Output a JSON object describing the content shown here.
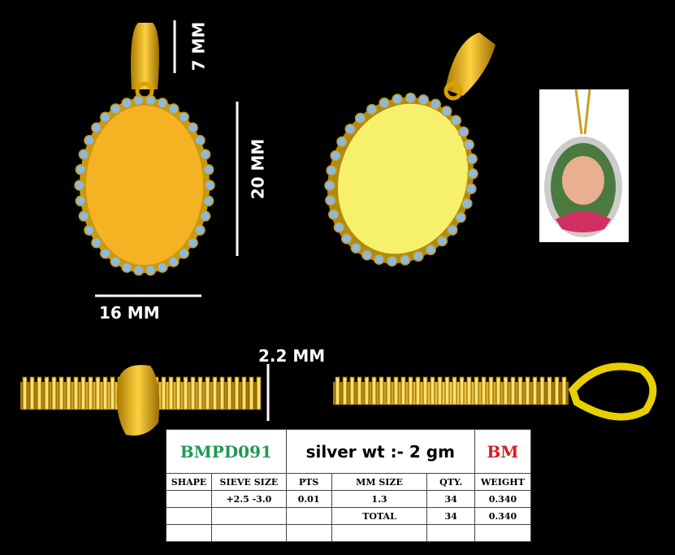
{
  "dimensions": {
    "bail_height": "7 MM",
    "height": "20 MM",
    "width": "16 MM",
    "thickness": "2.2 MM"
  },
  "spec": {
    "code": "BMPD091",
    "silver_weight": "silver wt :- 2 gm",
    "brand": "BM",
    "headers": [
      "SHAPE",
      "SIEVE SIZE",
      "PTS",
      "MM SIZE",
      "QTY.",
      "WEIGHT"
    ],
    "rows": [
      [
        "",
        "+2.5 -3.0",
        "0.01",
        "1.3",
        "34",
        "0.340"
      ],
      [
        "",
        "",
        "",
        "TOTAL",
        "34",
        "0.340"
      ],
      [
        "",
        "",
        "",
        "",
        "",
        ""
      ]
    ]
  },
  "colors": {
    "gold": "#f5b324",
    "gold_light": "#f7f06a",
    "stone": "#8fb8de",
    "code": "#1f9a50",
    "brand": "#d32020"
  }
}
